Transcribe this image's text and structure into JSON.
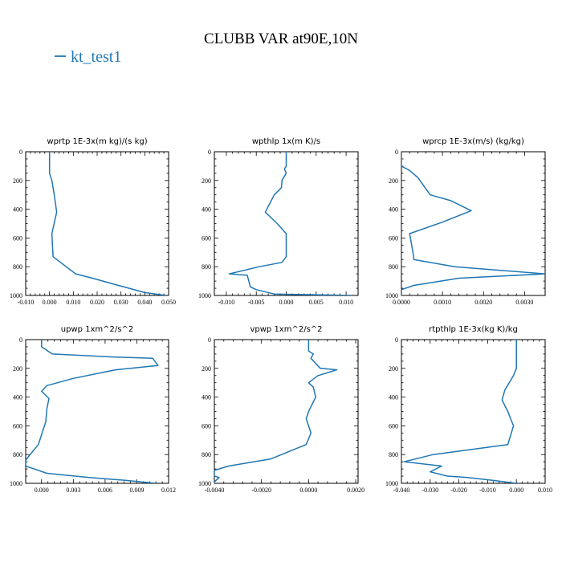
{
  "title": "CLUBB VAR at90E,10N",
  "legend": {
    "label": "kt_test1",
    "color": "#1f77b4"
  },
  "chart_data": [
    {
      "type": "line",
      "title": "wprtp   1E-3x(m kg)/(s kg)",
      "x_ticks": [
        "-0.010",
        "0.000",
        "0.010",
        "0.020",
        "0.030",
        "0.040",
        "0.050"
      ],
      "xlim": [
        -0.01,
        0.05
      ],
      "y_ticks": [
        "0",
        "200",
        "400",
        "600",
        "800",
        "1000"
      ],
      "ylim": [
        0,
        1000
      ],
      "y_inverted": true,
      "series": [
        {
          "name": "kt_test1",
          "color": "#1f77b4",
          "x": [
            0.0,
            0.0,
            0.0,
            0.001,
            0.002,
            0.003,
            0.001,
            0.0015,
            0.007,
            0.011,
            0.018,
            0.029,
            0.04,
            0.049
          ],
          "y": [
            0,
            100,
            150,
            200,
            300,
            420,
            570,
            730,
            800,
            850,
            880,
            930,
            980,
            1000
          ]
        }
      ]
    },
    {
      "type": "line",
      "title": "wpthlp   1x(m K)/s",
      "x_ticks": [
        "-0.010",
        "-0.005",
        "0.000",
        "0.005",
        "0.010"
      ],
      "xlim": [
        -0.012,
        0.012
      ],
      "y_ticks": [
        "0",
        "200",
        "400",
        "600",
        "800",
        "1000"
      ],
      "ylim": [
        0,
        1000
      ],
      "y_inverted": true,
      "series": [
        {
          "name": "kt_test1",
          "color": "#1f77b4",
          "x": [
            0.0,
            0.0,
            -0.0003,
            0.0,
            -0.0007,
            -0.0008,
            -0.002,
            -0.0035,
            -0.0015,
            0.0,
            0.0,
            -0.0007,
            -0.0045,
            -0.0095,
            -0.0065,
            -0.006,
            -0.005,
            -0.002,
            0.011
          ],
          "y": [
            0,
            100,
            120,
            150,
            200,
            250,
            300,
            420,
            500,
            570,
            730,
            770,
            800,
            850,
            860,
            940,
            960,
            990,
            1000
          ]
        }
      ]
    },
    {
      "type": "line",
      "title": "wprcp   1E-3x(m/s) (kg/kg)",
      "x_ticks": [
        "0.0000",
        "0.0010",
        "0.0020",
        "0.0030"
      ],
      "xlim": [
        0,
        0.0035
      ],
      "y_ticks": [
        "0",
        "200",
        "400",
        "600",
        "800",
        "1000"
      ],
      "ylim": [
        0,
        1000
      ],
      "y_inverted": true,
      "series": [
        {
          "name": "kt_test1",
          "color": "#1f77b4",
          "x": [
            0.0,
            0.0,
            0.0002,
            0.0004,
            0.0007,
            0.0012,
            0.0017,
            0.001,
            0.0002,
            0.0003,
            0.0003,
            0.0013,
            0.0035,
            0.0014,
            0.0003,
            0.0,
            0.0
          ],
          "y": [
            0,
            100,
            130,
            180,
            300,
            340,
            410,
            490,
            570,
            730,
            750,
            800,
            850,
            880,
            930,
            960,
            1000
          ]
        }
      ]
    },
    {
      "type": "line",
      "title": "upwp   1xm^2/s^2",
      "x_ticks": [
        "0.000",
        "0.003",
        "0.006",
        "0.009",
        "0.012"
      ],
      "xlim": [
        -0.0015,
        0.012
      ],
      "y_ticks": [
        "0",
        "200",
        "400",
        "600",
        "800",
        "1000"
      ],
      "ylim": [
        0,
        1000
      ],
      "y_inverted": true,
      "series": [
        {
          "name": "kt_test1",
          "color": "#1f77b4",
          "x": [
            0.0,
            0.0,
            0.001,
            0.0065,
            0.0105,
            0.011,
            0.007,
            0.003,
            0.0005,
            0.0,
            0.0007,
            0.0005,
            0.0004,
            -0.0003,
            -0.0012,
            -0.0015,
            -0.0015,
            0.0005,
            0.0045,
            0.008,
            0.0108
          ],
          "y": [
            0,
            50,
            100,
            120,
            130,
            180,
            210,
            270,
            320,
            360,
            410,
            480,
            570,
            730,
            810,
            840,
            880,
            930,
            960,
            980,
            1000
          ]
        }
      ]
    },
    {
      "type": "line",
      "title": "vpwp   1xm^2/s^2",
      "x_ticks": [
        "-0.0040",
        "-0.0020",
        "0.0000",
        "0.0020"
      ],
      "xlim": [
        -0.004,
        0.0021
      ],
      "y_ticks": [
        "0",
        "200",
        "400",
        "600",
        "800",
        "1000"
      ],
      "ylim": [
        0,
        1000
      ],
      "y_inverted": true,
      "series": [
        {
          "name": "kt_test1",
          "color": "#1f77b4",
          "x": [
            0.0,
            0.0,
            0.0002,
            0.0001,
            0.0005,
            0.0012,
            0.0004,
            0.0,
            0.0002,
            0.0003,
            0.0,
            -0.0001,
            0.0001,
            -0.0001,
            -0.0016,
            -0.0034,
            -0.004,
            -0.004,
            -0.0038,
            -0.004,
            -0.004
          ],
          "y": [
            0,
            80,
            100,
            130,
            200,
            210,
            250,
            300,
            330,
            400,
            500,
            550,
            650,
            730,
            830,
            880,
            910,
            950,
            960,
            990,
            1000
          ]
        }
      ]
    },
    {
      "type": "line",
      "title": "rtpthlp   1E-3x(kg K)/kg",
      "x_ticks": [
        "-0.040",
        "-0.030",
        "-0.020",
        "-0.010",
        "0.000",
        "0.010"
      ],
      "xlim": [
        -0.04,
        0.01
      ],
      "y_ticks": [
        "0",
        "200",
        "400",
        "600",
        "800",
        "1000"
      ],
      "ylim": [
        0,
        1000
      ],
      "y_inverted": true,
      "series": [
        {
          "name": "kt_test1",
          "color": "#1f77b4",
          "x": [
            0.0,
            0.0,
            0.0,
            -0.001,
            -0.004,
            -0.005,
            -0.003,
            -0.002,
            -0.001,
            -0.003,
            -0.029,
            -0.039,
            -0.026,
            -0.03,
            -0.024,
            -0.017,
            -0.008,
            0.0
          ],
          "y": [
            0,
            100,
            200,
            250,
            350,
            420,
            500,
            550,
            600,
            730,
            800,
            850,
            880,
            920,
            950,
            960,
            980,
            1000
          ]
        }
      ]
    }
  ]
}
